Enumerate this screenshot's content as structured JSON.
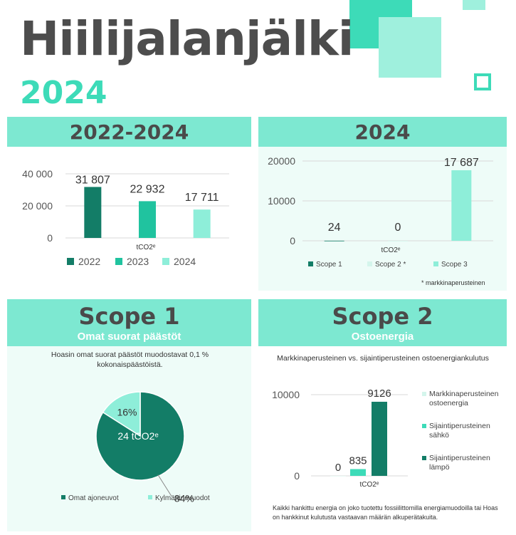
{
  "header": {
    "title": "Hiilijalanjälki",
    "year": "2024"
  },
  "colors": {
    "dark": "#137d67",
    "mid": "#20c39f",
    "light": "#8eeed9",
    "head": "#7de8d1",
    "panel": "#eefcf8"
  },
  "panels": {
    "trend": {
      "title": "2022-2024"
    },
    "scopes": {
      "title": "2024",
      "footnote": "* markkinaperusteinen"
    },
    "scope1": {
      "title": "Scope 1",
      "subtitle": "Omat suorat päästöt",
      "note": "Hoasin omat suorat päästöt muodostavat 0,1 % kokonaispäästöistä."
    },
    "scope2": {
      "title": "Scope 2",
      "subtitle": "Ostoenergia",
      "note": "Markkinaperusteinen vs. sijaintiperusteinen ostoenergiankulutus",
      "footer": "Kaikki hankittu energia on joko tuotettu fossiilittomilla energiamuodoilla tai Hoas on hankkinut kulutusta vastaavan määrän alkuperätakuita."
    }
  },
  "chart_data": [
    {
      "type": "bar",
      "title": "2022-2024",
      "xlabel": "tCO2ᵉ",
      "ylim": [
        0,
        40000
      ],
      "yticks": [
        "0",
        "20 000",
        "40 000"
      ],
      "legend": "bottom",
      "series": [
        {
          "name": "2022",
          "value": 31807,
          "label": "31 807",
          "color": "#137d67"
        },
        {
          "name": "2023",
          "value": 22932,
          "label": "22 932",
          "color": "#20c39f"
        },
        {
          "name": "2024",
          "value": 17711,
          "label": "17 711",
          "color": "#8eeed9"
        }
      ]
    },
    {
      "type": "bar",
      "title": "2024",
      "xlabel": "tCO2ᵉ",
      "ylim": [
        0,
        20000
      ],
      "yticks": [
        "0",
        "10000",
        "20000"
      ],
      "legend": "bottom",
      "series": [
        {
          "name": "Scope 1",
          "value": 24,
          "label": "24",
          "color": "#137d67"
        },
        {
          "name": "Scope 2 *",
          "value": 0,
          "label": "0",
          "color": "#d4f5ec"
        },
        {
          "name": "Scope 3",
          "value": 17687,
          "label": "17 687",
          "color": "#8eeed9"
        }
      ]
    },
    {
      "type": "pie",
      "center_label": "24 tCO2ᵉ",
      "legend": "bottom",
      "slices": [
        {
          "name": "Omat ajoneuvot",
          "value": 84,
          "label": "84%",
          "color": "#137d67"
        },
        {
          "name": "Kylmäainevuodot",
          "value": 16,
          "label": "16%",
          "color": "#8eeed9"
        }
      ]
    },
    {
      "type": "bar",
      "xlabel": "tCO2ᵉ",
      "ylim": [
        0,
        10000
      ],
      "yticks": [
        "0",
        "10000"
      ],
      "legend": "right",
      "series": [
        {
          "name": "Markkinaperusteinen ostoenergia",
          "value": 0,
          "label": "0",
          "color": "#d4f5ec"
        },
        {
          "name": "Sijaintiperusteinen sähkö",
          "value": 835,
          "label": "835",
          "color": "#3ddbb8"
        },
        {
          "name": "Sijaintiperusteinen lämpö",
          "value": 9126,
          "label": "9126",
          "color": "#137d67"
        }
      ]
    }
  ]
}
